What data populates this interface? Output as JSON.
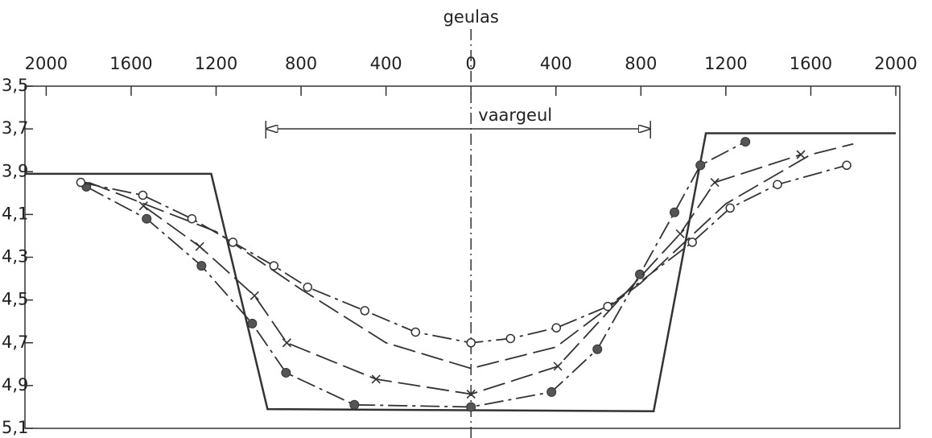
{
  "chart_data": {
    "type": "line",
    "annotations": {
      "axis": "geulas",
      "channel": "vaargeul",
      "channel_x": [
        -966,
        845
      ]
    },
    "xlim": [
      -2100,
      2000
    ],
    "xticks": [
      {
        "value": -2000,
        "label": "2000"
      },
      {
        "value": -1600,
        "label": "1600"
      },
      {
        "value": -1200,
        "label": "1200"
      },
      {
        "value": -800,
        "label": "800"
      },
      {
        "value": -400,
        "label": "400"
      },
      0,
      400,
      800,
      1200,
      1600,
      2000
    ],
    "ylim": [
      3.5,
      5.1
    ],
    "y_inverted": true,
    "yticks": [
      {
        "value": 3.5,
        "label": "3,5"
      },
      {
        "value": 3.7,
        "label": "3,7"
      },
      {
        "value": 3.9,
        "label": "3,9"
      },
      {
        "value": 4.1,
        "label": "4,1"
      },
      {
        "value": 4.3,
        "label": "4,3"
      },
      {
        "value": 4.5,
        "label": "4,5"
      },
      {
        "value": 4.7,
        "label": "4,7"
      },
      {
        "value": 4.9,
        "label": "4,9"
      },
      {
        "value": 5.1,
        "label": "5,1"
      }
    ],
    "series": [
      {
        "color": "#333333",
        "marker": "none",
        "dash": "solid",
        "x": [
          -2100,
          -1223,
          -958,
          860,
          1106,
          2000
        ],
        "values": [
          3.91,
          3.91,
          5.01,
          5.02,
          3.72,
          3.72
        ]
      },
      {
        "color": "#333333",
        "marker": "filled-circle",
        "dash": "dashdot",
        "x": [
          -1811,
          -1527,
          -1269,
          -1030,
          -871,
          -549,
          0,
          379,
          595,
          795,
          958,
          1080,
          1292
        ],
        "values": [
          3.97,
          4.12,
          4.34,
          4.61,
          4.84,
          4.99,
          5.0,
          4.93,
          4.73,
          4.38,
          4.09,
          3.87,
          3.76
        ]
      },
      {
        "color": "#333333",
        "marker": "cross",
        "dash": "dashed",
        "x": [
          -1542,
          -1277,
          -1019,
          -867,
          -447,
          0,
          409,
          985,
          1148,
          1553
        ],
        "values": [
          4.06,
          4.25,
          4.48,
          4.7,
          4.87,
          4.94,
          4.81,
          4.19,
          3.95,
          3.82
        ]
      },
      {
        "color": "#333333",
        "marker": "none",
        "dash": "dashed",
        "x": [
          -1800,
          -1200,
          -800,
          -400,
          0,
          400,
          800,
          1200,
          1600,
          1800
        ],
        "values": [
          3.95,
          4.18,
          4.45,
          4.7,
          4.82,
          4.72,
          4.42,
          4.05,
          3.82,
          3.77
        ]
      },
      {
        "color": "#333333",
        "marker": "open-circle",
        "dash": "dashdot",
        "x": [
          -1837,
          -1545,
          -1314,
          -1121,
          -928,
          -769,
          -500,
          -261,
          0,
          186,
          402,
          644,
          1042,
          1220,
          1443,
          1769
        ],
        "values": [
          3.95,
          4.01,
          4.12,
          4.23,
          4.34,
          4.44,
          4.55,
          4.65,
          4.7,
          4.68,
          4.63,
          4.53,
          4.23,
          4.07,
          3.96,
          3.87
        ]
      }
    ]
  }
}
